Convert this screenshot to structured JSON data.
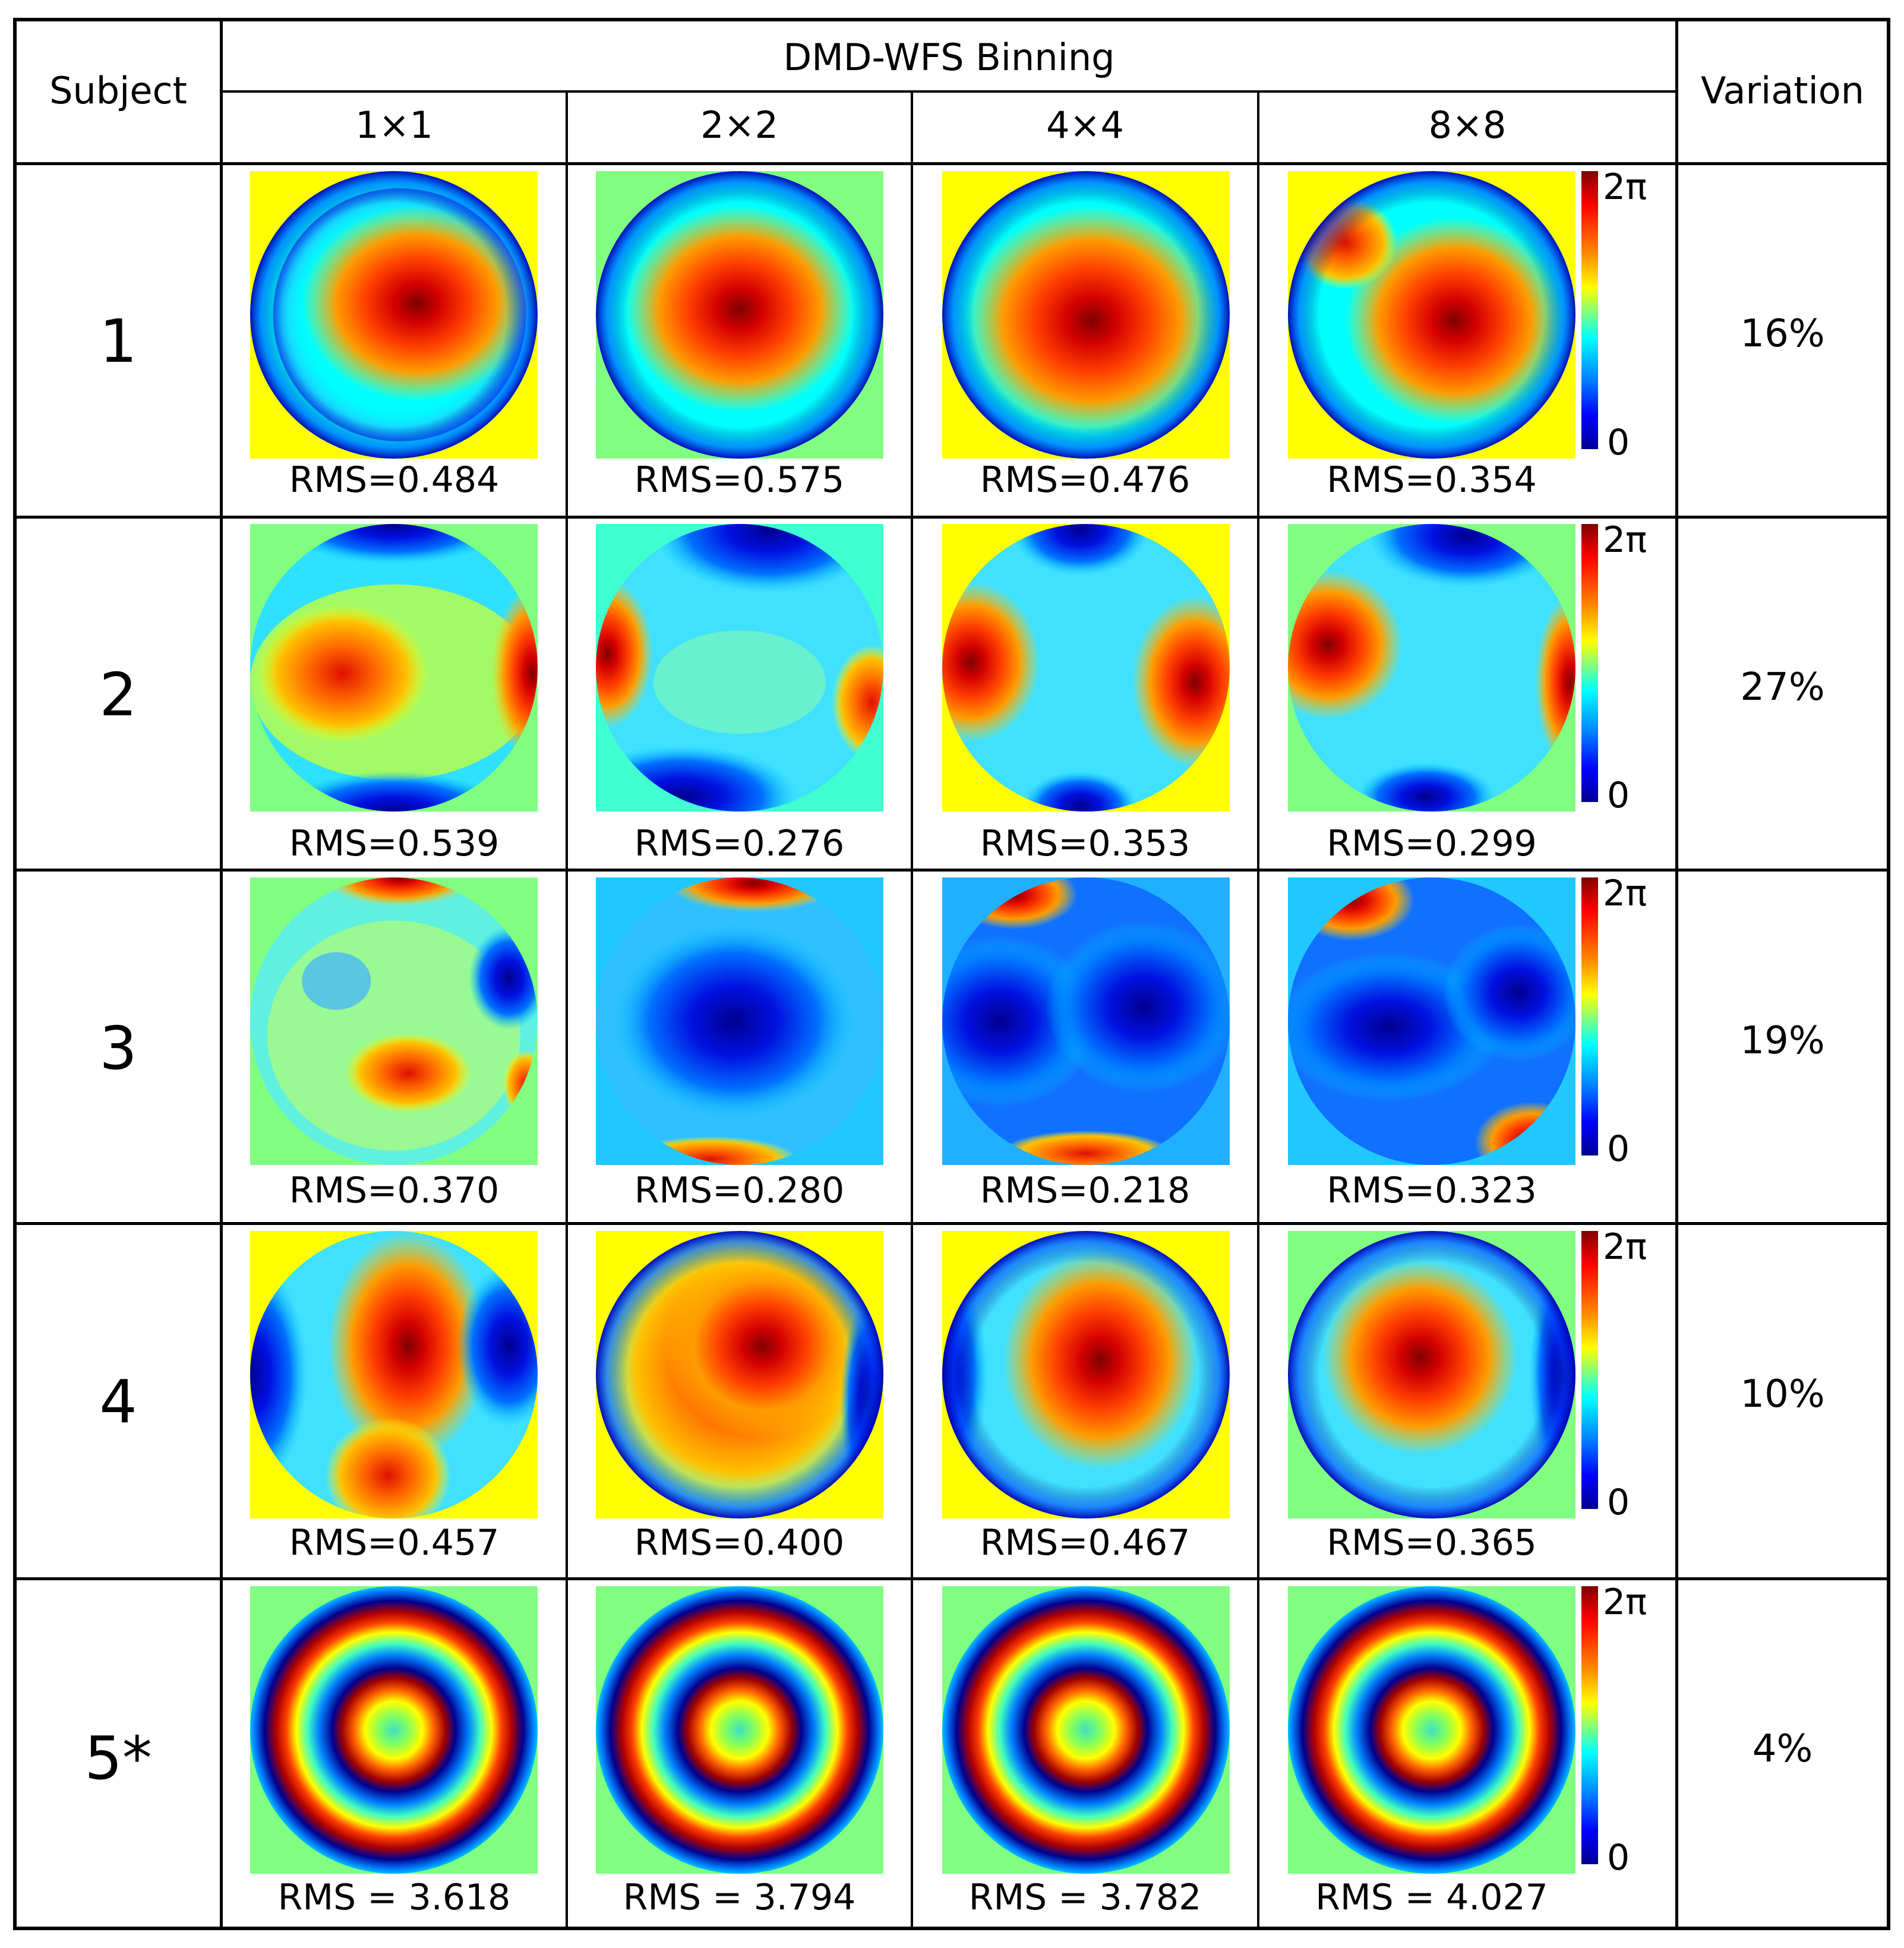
{
  "table": {
    "header": {
      "subject": "Subject",
      "group": "DMD-WFS Binning",
      "variation": "Variation",
      "binning": [
        "1×1",
        "2×2",
        "4×4",
        "8×8"
      ]
    },
    "colorbar": {
      "max_label": "2π",
      "min_label": "0"
    },
    "rows": [
      {
        "subject": "1",
        "rms": [
          "RMS=0.484",
          "RMS=0.575",
          "RMS=0.476",
          "RMS=0.354"
        ],
        "variation": "16%"
      },
      {
        "subject": "2",
        "rms": [
          "RMS=0.539",
          "RMS=0.276",
          "RMS=0.353",
          "RMS=0.299"
        ],
        "variation": "27%"
      },
      {
        "subject": "3",
        "rms": [
          "RMS=0.370",
          "RMS=0.280",
          "RMS=0.218",
          "RMS=0.323"
        ],
        "variation": "19%"
      },
      {
        "subject": "4",
        "rms": [
          "RMS=0.457",
          "RMS=0.400",
          "RMS=0.467",
          "RMS=0.365"
        ],
        "variation": "10%"
      },
      {
        "subject": "5*",
        "rms": [
          "RMS = 3.618",
          "RMS = 3.794",
          "RMS = 3.782",
          "RMS = 4.027"
        ],
        "variation": "4%"
      }
    ]
  },
  "colors": {
    "red": "#d40000",
    "yellow": "#ffff00",
    "cyan": "#00ffff",
    "blue": "#0000ff",
    "green_bg": "#80ff80"
  }
}
